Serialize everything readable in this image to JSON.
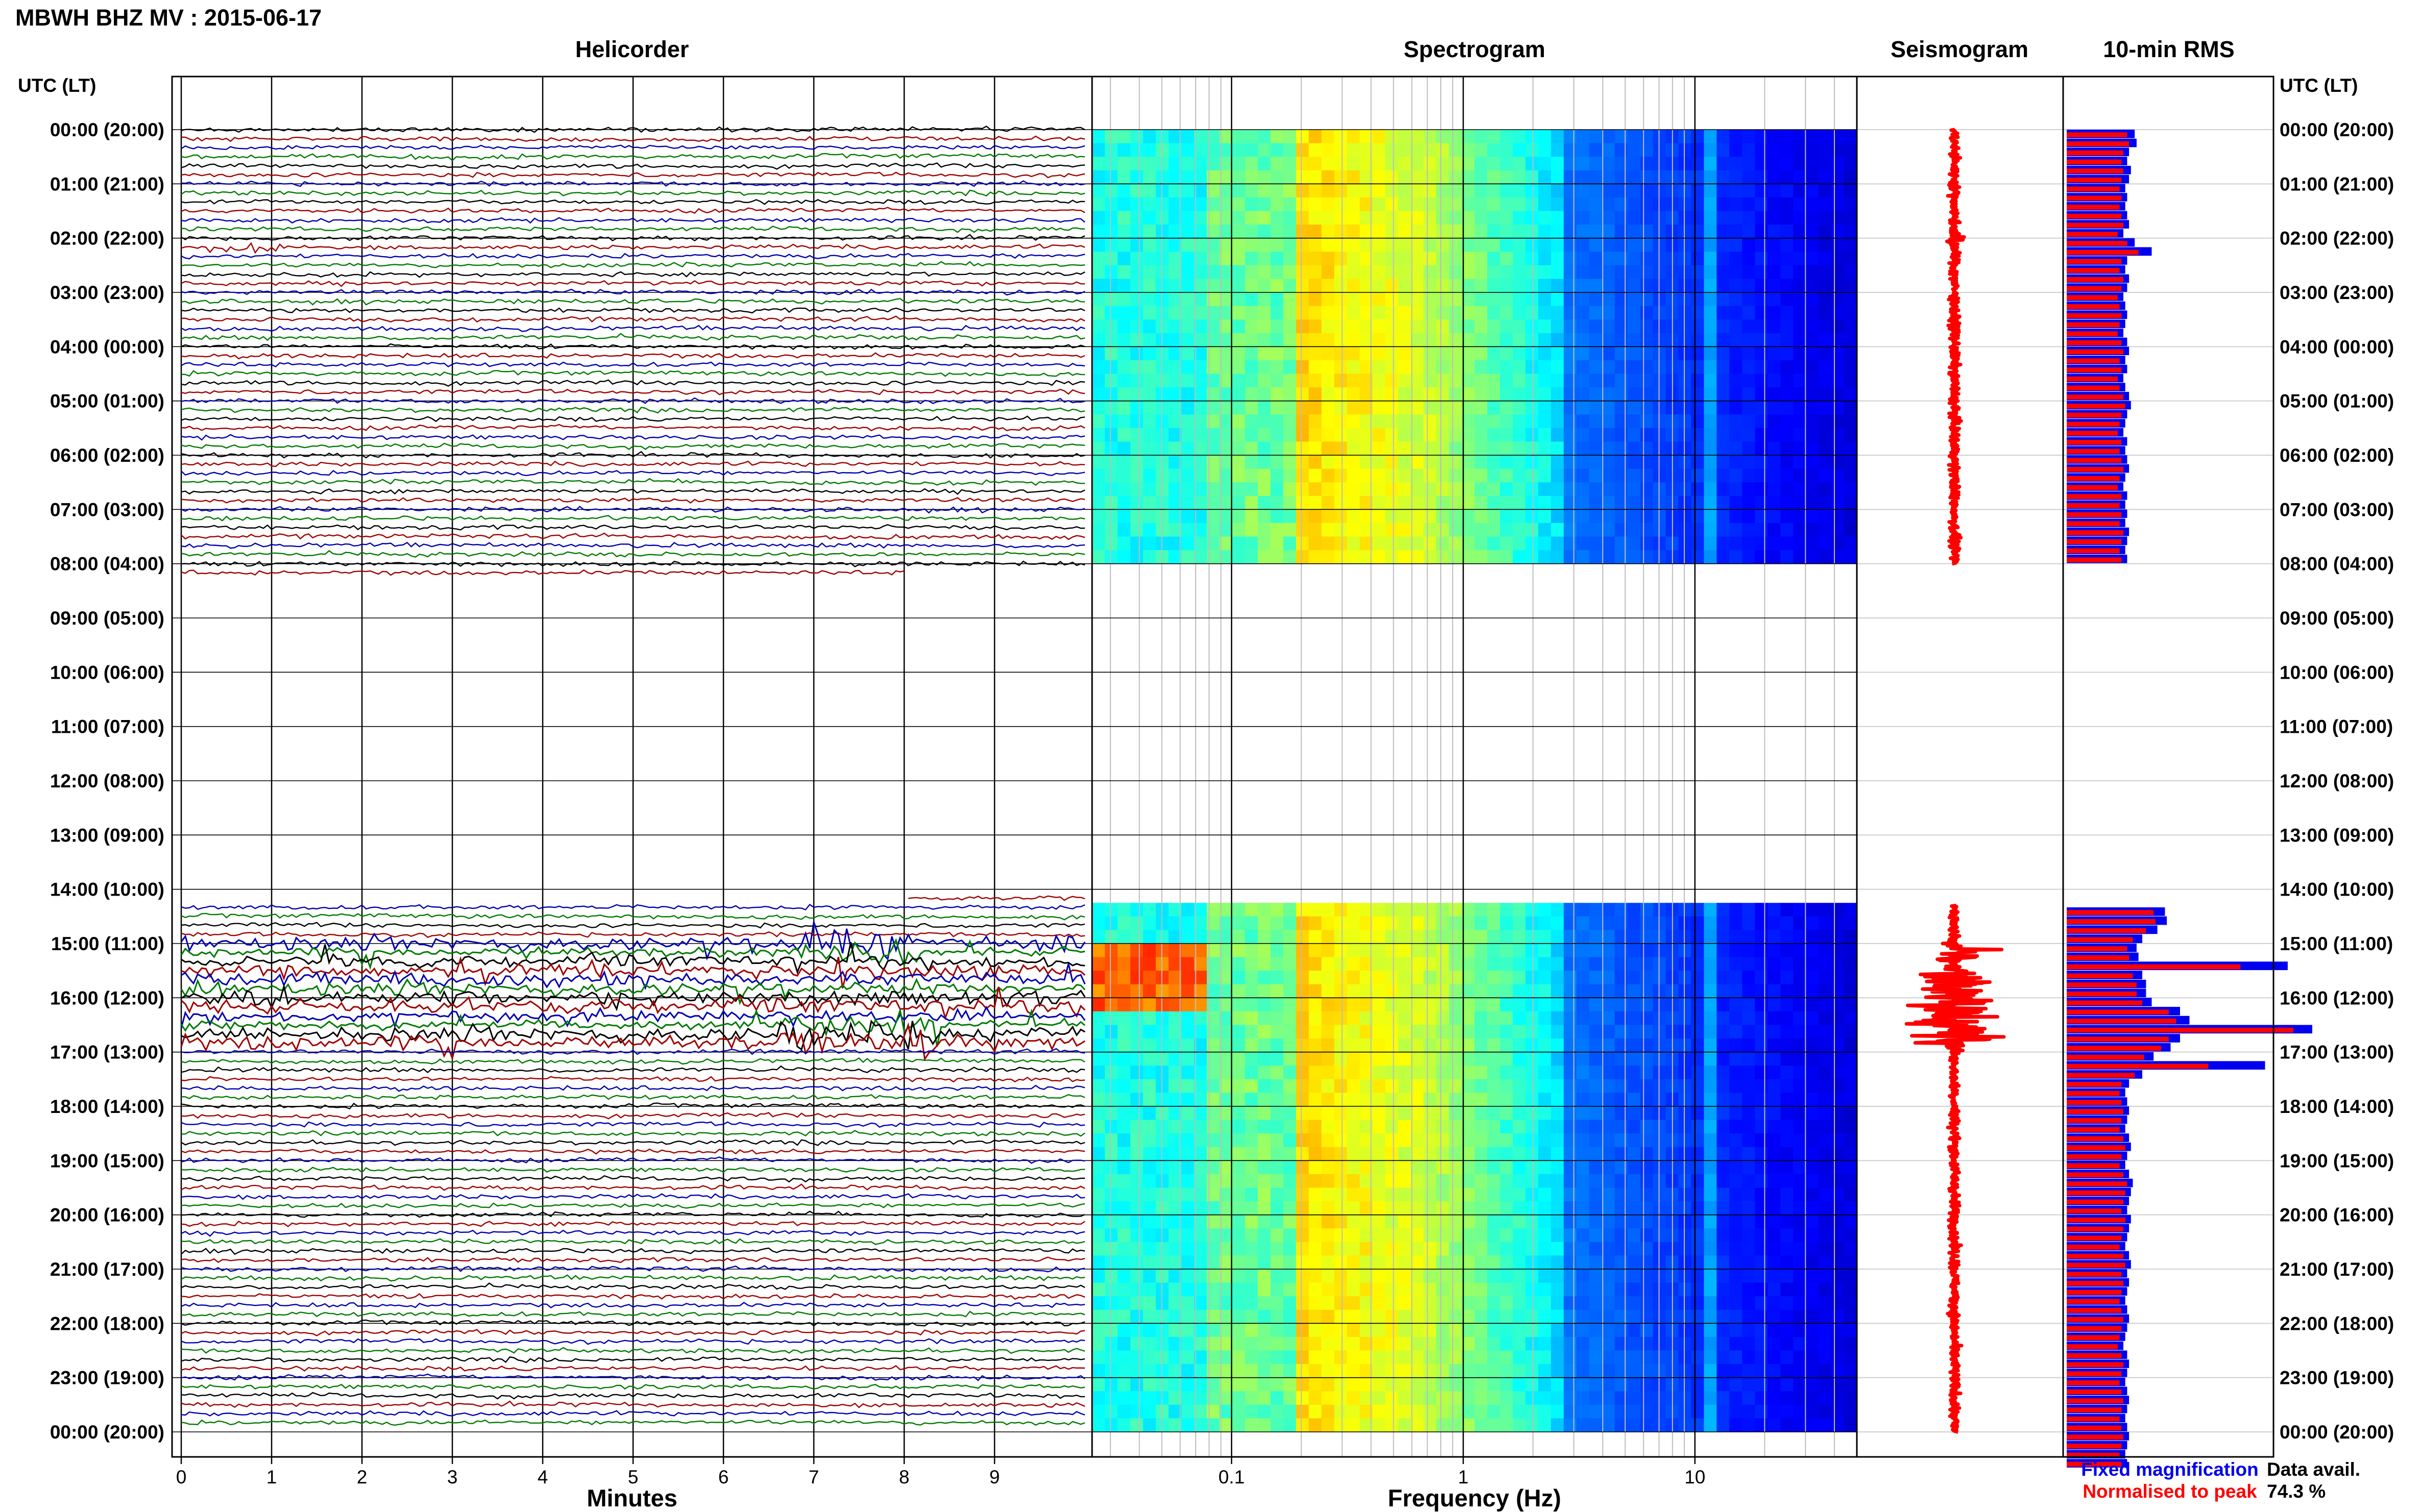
{
  "header": {
    "title": "MBWH BHZ MV : 2015-06-17"
  },
  "labels": {
    "time_axis_header": "UTC (LT)",
    "fixed_magnification": "Fixed magnification",
    "normalised_to_peak": "Normalised to peak",
    "data_avail_label": "Data avail.",
    "data_avail_value": "74.3 %"
  },
  "colors": {
    "trace_cycle": [
      "#000000",
      "#a00000",
      "#0000b0",
      "#007a00"
    ],
    "fixed": "#0000ee",
    "normalised": "#ff0000",
    "grid": "#000000",
    "gap": "#ffffff"
  },
  "chart_data": [
    {
      "type": "line",
      "name": "helicorder",
      "title": "Helicorder",
      "xlabel": "Minutes",
      "x_ticks": [
        "0",
        "1",
        "2",
        "3",
        "4",
        "5",
        "6",
        "7",
        "8",
        "9"
      ],
      "xlim": [
        0,
        10
      ],
      "time_labels": [
        "00:00 (20:00)",
        "01:00 (21:00)",
        "02:00 (22:00)",
        "03:00 (23:00)",
        "04:00 (00:00)",
        "05:00 (01:00)",
        "06:00 (02:00)",
        "07:00 (03:00)",
        "08:00 (04:00)",
        "09:00 (05:00)",
        "10:00 (06:00)",
        "11:00 (07:00)",
        "12:00 (08:00)",
        "13:00 (09:00)",
        "14:00 (10:00)",
        "15:00 (11:00)",
        "16:00 (12:00)",
        "17:00 (13:00)",
        "18:00 (14:00)",
        "19:00 (15:00)",
        "20:00 (16:00)",
        "21:00 (17:00)",
        "22:00 (18:00)",
        "23:00 (19:00)",
        "00:00 (20:00)"
      ],
      "data_gap_utc_hours": [
        8.3,
        14.3
      ]
    },
    {
      "type": "heatmap",
      "name": "spectrogram",
      "title": "Spectrogram",
      "xlabel": "Frequency (Hz)",
      "x_scale": "log",
      "x_ticks": [
        "0.1",
        "1",
        "10"
      ],
      "xlim": [
        0.025,
        50
      ],
      "data_gap_utc_hours": [
        8.0,
        14.3
      ]
    },
    {
      "type": "line",
      "name": "seismogram",
      "title": "Seismogram"
    },
    {
      "type": "bar",
      "name": "rms",
      "title": "10-min RMS",
      "series": [
        {
          "name": "Fixed magnification",
          "values": [
            0.36,
            0.37,
            0.33,
            0.32,
            0.34,
            0.33,
            0.31,
            0.32,
            0.31,
            0.32,
            0.33,
            0.3,
            0.36,
            0.45,
            0.32,
            0.31,
            0.33,
            0.32,
            0.3,
            0.31,
            0.32,
            0.31,
            0.3,
            0.32,
            0.33,
            0.31,
            0.32,
            0.3,
            0.31,
            0.33,
            0.34,
            0.32,
            0.31,
            0.3,
            0.32,
            0.31,
            0.32,
            0.33,
            0.31,
            0.3,
            0.32,
            0.31,
            0.32,
            0.31,
            0.33,
            0.32,
            0.31,
            0.32,
            0.33,
            0.32,
            0.3,
            0.31,
            0.32,
            0.31,
            0.3,
            0.33,
            0.32,
            0.31,
            0.32,
            0.31,
            0.3,
            0.32,
            0.31,
            0.33,
            0.32,
            0.31,
            0.32,
            0.31,
            0.3,
            0.31,
            0.32,
            0.31,
            0.31,
            0.32,
            0.3,
            0.31,
            0.32,
            0.31,
            0.32,
            0.31,
            0.3,
            0.31,
            0.32,
            0.31,
            0.31,
            0.32,
            0.52,
            0.53,
            0.48,
            0.4,
            0.37,
            0.38,
            1.17,
            0.4,
            0.42,
            0.42,
            0.45,
            0.6,
            0.65,
            1.3,
            0.6,
            0.55,
            0.46,
            1.05,
            0.4,
            0.33,
            0.31,
            0.32,
            0.33,
            0.32,
            0.31,
            0.33,
            0.34,
            0.32,
            0.31,
            0.33,
            0.35,
            0.34,
            0.33,
            0.32,
            0.34,
            0.33,
            0.32,
            0.31,
            0.33,
            0.34,
            0.32,
            0.33,
            0.32,
            0.31,
            0.32,
            0.33,
            0.32,
            0.31,
            0.3,
            0.32,
            0.33,
            0.32,
            0.31,
            0.32,
            0.33,
            0.32,
            0.31,
            0.32,
            0.33,
            0.32,
            0.31,
            0.32
          ]
        },
        {
          "name": "Normalised to peak",
          "values": [
            0.32,
            0.33,
            0.3,
            0.29,
            0.3,
            0.29,
            0.28,
            0.29,
            0.28,
            0.29,
            0.3,
            0.27,
            0.32,
            0.38,
            0.29,
            0.28,
            0.3,
            0.29,
            0.27,
            0.28,
            0.29,
            0.28,
            0.27,
            0.29,
            0.3,
            0.28,
            0.29,
            0.27,
            0.28,
            0.3,
            0.31,
            0.29,
            0.28,
            0.27,
            0.29,
            0.28,
            0.29,
            0.3,
            0.28,
            0.27,
            0.29,
            0.28,
            0.29,
            0.28,
            0.3,
            0.29,
            0.28,
            0.29,
            0.3,
            0.29,
            0.27,
            0.28,
            0.29,
            0.28,
            0.27,
            0.3,
            0.29,
            0.28,
            0.29,
            0.28,
            0.27,
            0.29,
            0.28,
            0.3,
            0.29,
            0.28,
            0.29,
            0.28,
            0.27,
            0.28,
            0.29,
            0.28,
            0.28,
            0.29,
            0.27,
            0.28,
            0.29,
            0.28,
            0.29,
            0.28,
            0.27,
            0.28,
            0.29,
            0.28,
            0.28,
            0.29,
            0.46,
            0.47,
            0.42,
            0.35,
            0.32,
            0.33,
            0.92,
            0.35,
            0.37,
            0.37,
            0.4,
            0.54,
            0.58,
            1.2,
            0.54,
            0.5,
            0.41,
            0.75,
            0.36,
            0.29,
            0.28,
            0.29,
            0.3,
            0.29,
            0.28,
            0.3,
            0.31,
            0.29,
            0.28,
            0.3,
            0.32,
            0.31,
            0.3,
            0.29,
            0.31,
            0.3,
            0.29,
            0.28,
            0.3,
            0.31,
            0.29,
            0.3,
            0.29,
            0.28,
            0.29,
            0.3,
            0.29,
            0.28,
            0.27,
            0.29,
            0.3,
            0.29,
            0.28,
            0.29,
            0.3,
            0.29,
            0.28,
            0.29,
            0.3,
            0.29,
            0.28,
            0.29
          ]
        }
      ]
    }
  ]
}
